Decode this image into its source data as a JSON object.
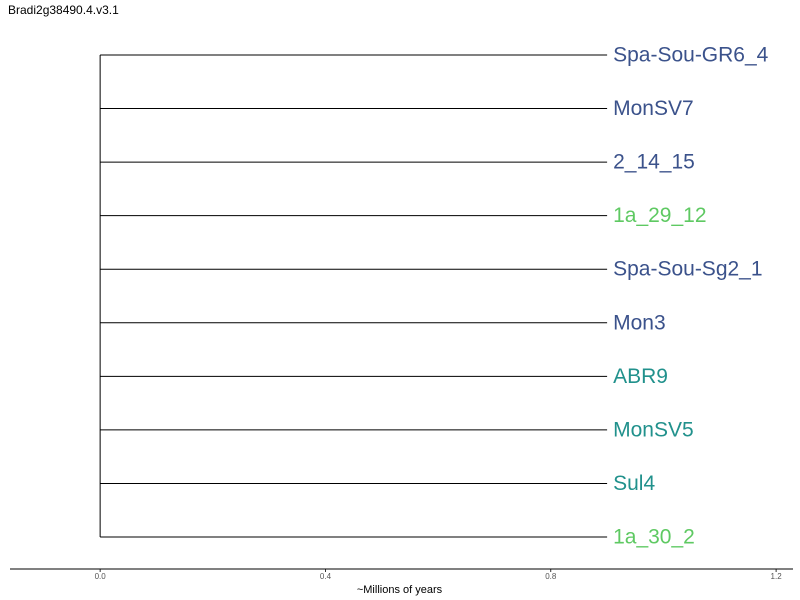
{
  "title": "Bradi2g38490.4.v3.1",
  "chart_data": {
    "type": "dendrogram",
    "title": "Bradi2g38490.4.v3.1",
    "xlabel": "~Millions of years",
    "xlim": [
      -0.16,
      1.23
    ],
    "xticks": [
      0.0,
      0.4,
      0.8,
      1.2
    ],
    "xtick_labels": [
      "0.0",
      "0.4",
      "0.8",
      "1.2"
    ],
    "root_x": 0.0,
    "leaf_x": 0.9,
    "grid": false,
    "leaves": [
      {
        "label": "Spa-Sou-GR6_4",
        "color": "#3b528b"
      },
      {
        "label": "MonSV7",
        "color": "#3b528b"
      },
      {
        "label": "2_14_15",
        "color": "#3b528b"
      },
      {
        "label": "1a_29_12",
        "color": "#5ec962"
      },
      {
        "label": "Spa-Sou-Sg2_1",
        "color": "#3b528b"
      },
      {
        "label": "Mon3",
        "color": "#3b528b"
      },
      {
        "label": "ABR9",
        "color": "#21918c"
      },
      {
        "label": "MonSV5",
        "color": "#21918c"
      },
      {
        "label": "Sul4",
        "color": "#21918c"
      },
      {
        "label": "1a_30_2",
        "color": "#5ec962"
      }
    ]
  }
}
